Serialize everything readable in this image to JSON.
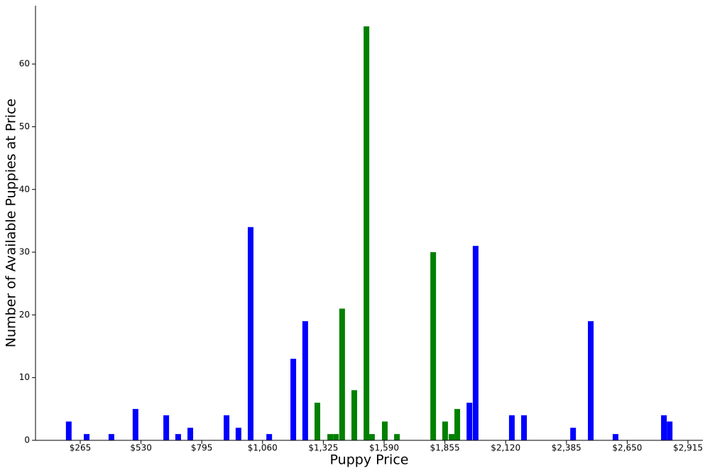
{
  "chart_data": {
    "type": "bar",
    "x_label": "Puppy Price",
    "y_label": "Number of Available Puppies at Price",
    "x": [
      215,
      293,
      401,
      506,
      640,
      692,
      745,
      903,
      955,
      1008,
      1089,
      1194,
      1246,
      1299,
      1355,
      1380,
      1407,
      1460,
      1513,
      1537,
      1593,
      1646,
      1804,
      1856,
      1884,
      1909,
      1962,
      1989,
      2147,
      2200,
      2414,
      2491,
      2599,
      2810,
      2835
    ],
    "values": [
      3,
      1,
      1,
      5,
      4,
      1,
      2,
      4,
      2,
      34,
      1,
      13,
      19,
      6,
      1,
      1,
      21,
      8,
      66,
      1,
      3,
      1,
      30,
      3,
      1,
      5,
      6,
      31,
      4,
      4,
      2,
      19,
      1,
      4,
      3
    ],
    "colors": [
      "#0000ff",
      "#0000ff",
      "#0000ff",
      "#0000ff",
      "#0000ff",
      "#0000ff",
      "#0000ff",
      "#0000ff",
      "#0000ff",
      "#0000ff",
      "#0000ff",
      "#0000ff",
      "#0000ff",
      "#008000",
      "#008000",
      "#008000",
      "#008000",
      "#008000",
      "#008000",
      "#008000",
      "#008000",
      "#008000",
      "#008000",
      "#008000",
      "#008000",
      "#008000",
      "#0000ff",
      "#0000ff",
      "#0000ff",
      "#0000ff",
      "#0000ff",
      "#0000ff",
      "#0000ff",
      "#0000ff",
      "#0000ff"
    ],
    "xlim": [
      70,
      2980
    ],
    "ylim": [
      0,
      69.3
    ],
    "xticks": [
      {
        "value": 265,
        "label": "$265"
      },
      {
        "value": 530,
        "label": "$530"
      },
      {
        "value": 795,
        "label": "$795"
      },
      {
        "value": 1060,
        "label": "$1,060"
      },
      {
        "value": 1325,
        "label": "$1,325"
      },
      {
        "value": 1590,
        "label": "$1,590"
      },
      {
        "value": 1855,
        "label": "$1,855"
      },
      {
        "value": 2120,
        "label": "$2,120"
      },
      {
        "value": 2385,
        "label": "$2,385"
      },
      {
        "value": 2650,
        "label": "$2,650"
      },
      {
        "value": 2915,
        "label": "$2,915"
      }
    ],
    "yticks": [
      0,
      10,
      20,
      30,
      40,
      50,
      60
    ],
    "grid": false
  }
}
